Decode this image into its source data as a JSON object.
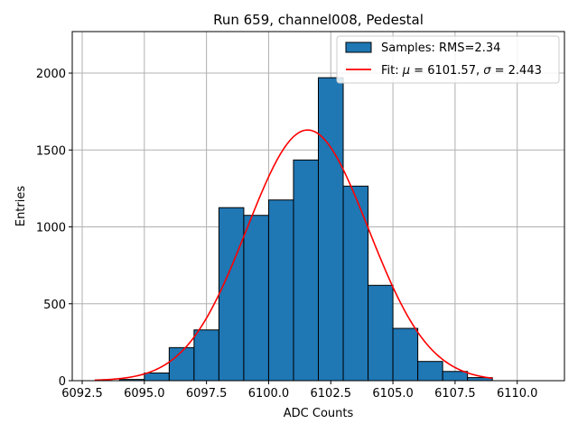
{
  "chart_data": {
    "type": "bar",
    "title": "Run 659, channel008, Pedestal",
    "xlabel": "ADC Counts",
    "ylabel": "Entries",
    "xlim": [
      6092.1,
      6111.9
    ],
    "ylim": [
      0,
      2270
    ],
    "grid": true,
    "legend_position": "top-right",
    "xticks": [
      6092.5,
      6095.0,
      6097.5,
      6100.0,
      6102.5,
      6105.0,
      6107.5,
      6110.0
    ],
    "xtick_labels": [
      "6092.5",
      "6095.0",
      "6097.5",
      "6100.0",
      "6102.5",
      "6105.0",
      "6107.5",
      "6110.0"
    ],
    "yticks": [
      0,
      500,
      1000,
      1500,
      2000
    ],
    "ytick_labels": [
      "0",
      "500",
      "1000",
      "1500",
      "2000"
    ],
    "histogram": {
      "name": "Samples: RMS=2.34",
      "color": "#1f77b4",
      "edge_color": "#000000",
      "bins": [
        {
          "left": 6094,
          "right": 6095,
          "count": 8
        },
        {
          "left": 6095,
          "right": 6096,
          "count": 50
        },
        {
          "left": 6096,
          "right": 6097,
          "count": 215
        },
        {
          "left": 6097,
          "right": 6098,
          "count": 330
        },
        {
          "left": 6098,
          "right": 6099,
          "count": 1125
        },
        {
          "left": 6099,
          "right": 6100,
          "count": 1075
        },
        {
          "left": 6100,
          "right": 6101,
          "count": 1175
        },
        {
          "left": 6101,
          "right": 6102,
          "count": 1435
        },
        {
          "left": 6102,
          "right": 6103,
          "count": 1970
        },
        {
          "left": 6103,
          "right": 6104,
          "count": 1265
        },
        {
          "left": 6104,
          "right": 6105,
          "count": 620
        },
        {
          "left": 6105,
          "right": 6106,
          "count": 340
        },
        {
          "left": 6106,
          "right": 6107,
          "count": 125
        },
        {
          "left": 6107,
          "right": 6108,
          "count": 60
        },
        {
          "left": 6108,
          "right": 6109,
          "count": 20
        }
      ]
    },
    "fit": {
      "name_prefix": "Fit: ",
      "mu_symbol": "μ",
      "sigma_symbol": "σ",
      "mu_text": " = 6101.57, ",
      "sigma_text": " = 2.443",
      "mu": 6101.57,
      "sigma": 2.443,
      "amplitude": 1630,
      "x_range": [
        6093,
        6109
      ],
      "color": "#ff0000"
    }
  }
}
